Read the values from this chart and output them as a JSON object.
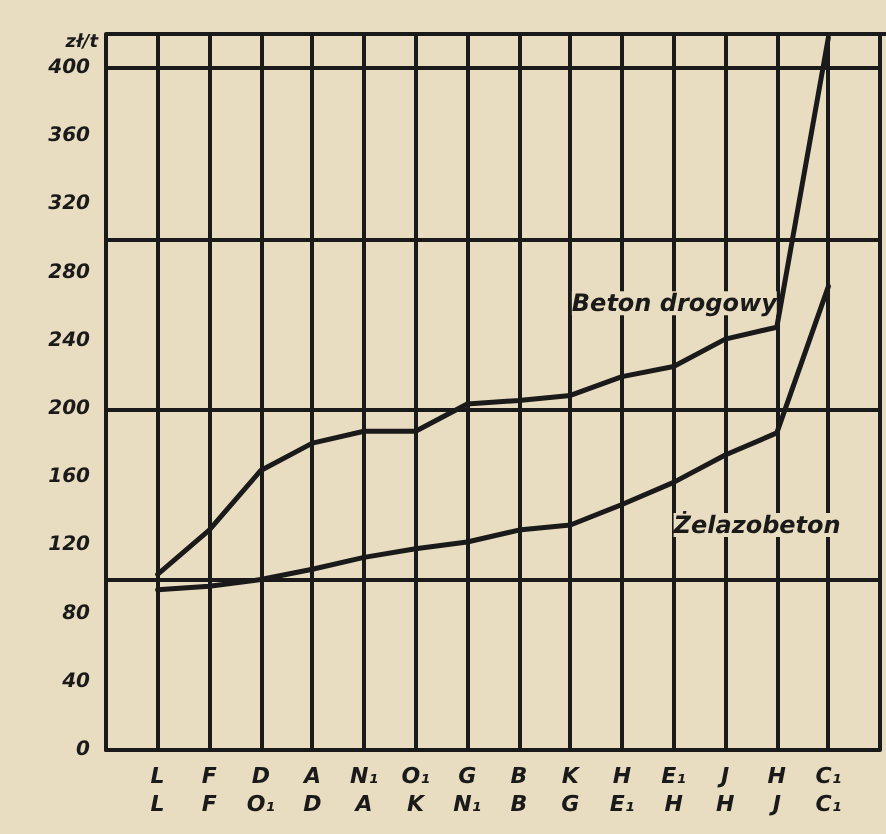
{
  "chart_data": {
    "type": "line",
    "ylabel": "zł/t",
    "categories": [
      "L\nL",
      "F\nF",
      "D\nO₁",
      "A\nD",
      "N₁\nA",
      "O₁\nK",
      "G\nN₁",
      "B\nB",
      "K\nG",
      "H\nE₁",
      "E₁\nH",
      "J\nH",
      "H\nJ",
      "C₁\nC₁"
    ],
    "series": [
      {
        "name": "Beton drogowy",
        "color": "#1a1a1a",
        "values": [
          103,
          129,
          164,
          180,
          187,
          187,
          203,
          205,
          208,
          219,
          225,
          241,
          248,
          418
        ]
      },
      {
        "name": "Żelazobeton",
        "color": "#1a1a1a",
        "values": [
          94,
          96,
          100,
          106,
          113,
          118,
          122,
          129,
          132,
          144,
          157,
          173,
          186,
          272
        ]
      }
    ],
    "ylim": [
      0,
      420
    ],
    "yticks": [
      0,
      40,
      80,
      120,
      160,
      200,
      240,
      280,
      320,
      360,
      400
    ],
    "grid": true,
    "legend": false,
    "marker": "none",
    "line_style": "solid"
  }
}
